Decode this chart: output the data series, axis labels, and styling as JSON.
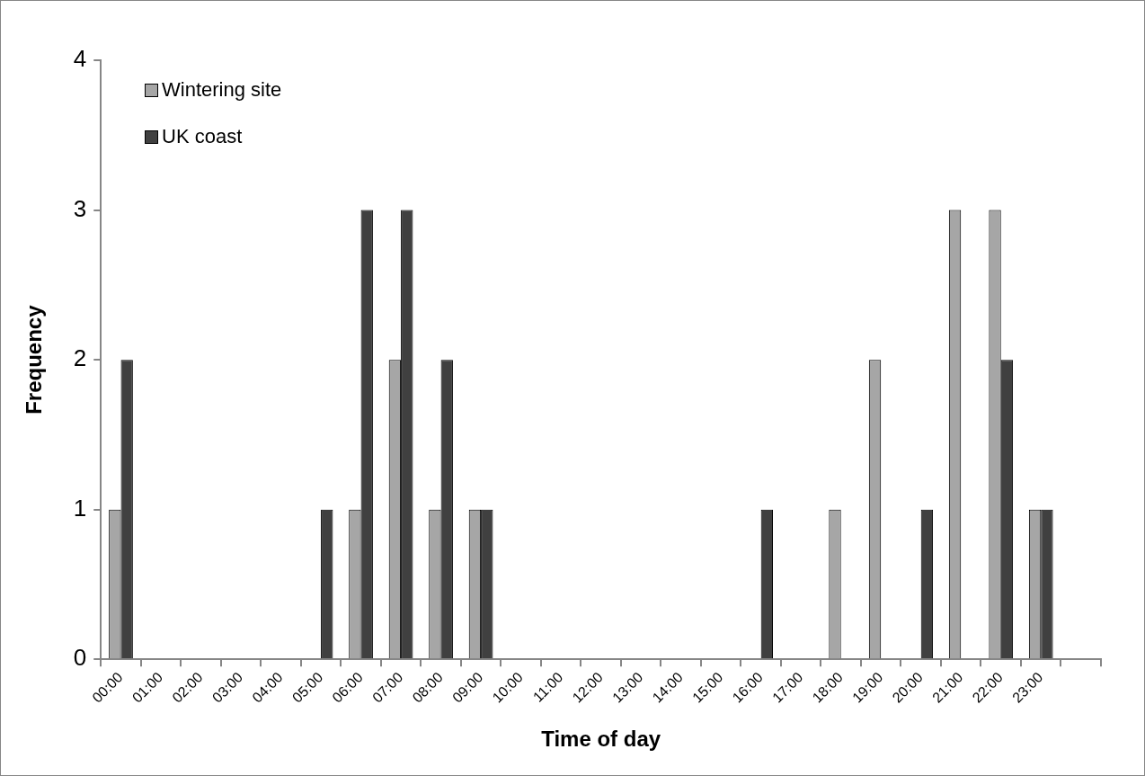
{
  "chart_data": {
    "type": "bar",
    "xlabel": "Time of day",
    "ylabel": "Frequency",
    "categories": [
      "00:00",
      "01:00",
      "02:00",
      "03:00",
      "04:00",
      "05:00",
      "06:00",
      "07:00",
      "08:00",
      "09:00",
      "10:00",
      "11:00",
      "12:00",
      "13:00",
      "14:00",
      "15:00",
      "16:00",
      "17:00",
      "18:00",
      "19:00",
      "20:00",
      "21:00",
      "22:00",
      "23:00",
      null
    ],
    "series": [
      {
        "name": "Wintering site",
        "color": "#a6a6a6",
        "values": [
          1,
          0,
          0,
          0,
          0,
          0,
          1,
          2,
          1,
          1,
          0,
          0,
          0,
          0,
          0,
          0,
          0,
          0,
          1,
          2,
          0,
          3,
          3,
          1,
          null
        ]
      },
      {
        "name": "UK coast",
        "color": "#404040",
        "values": [
          2,
          0,
          0,
          0,
          0,
          1,
          3,
          3,
          2,
          1,
          0,
          0,
          0,
          0,
          0,
          0,
          1,
          0,
          0,
          0,
          1,
          0,
          2,
          1,
          null
        ]
      }
    ],
    "ylim": [
      0,
      4
    ],
    "yticks": [
      0,
      1,
      2,
      3,
      4
    ],
    "grid": false,
    "legend": "top left"
  }
}
